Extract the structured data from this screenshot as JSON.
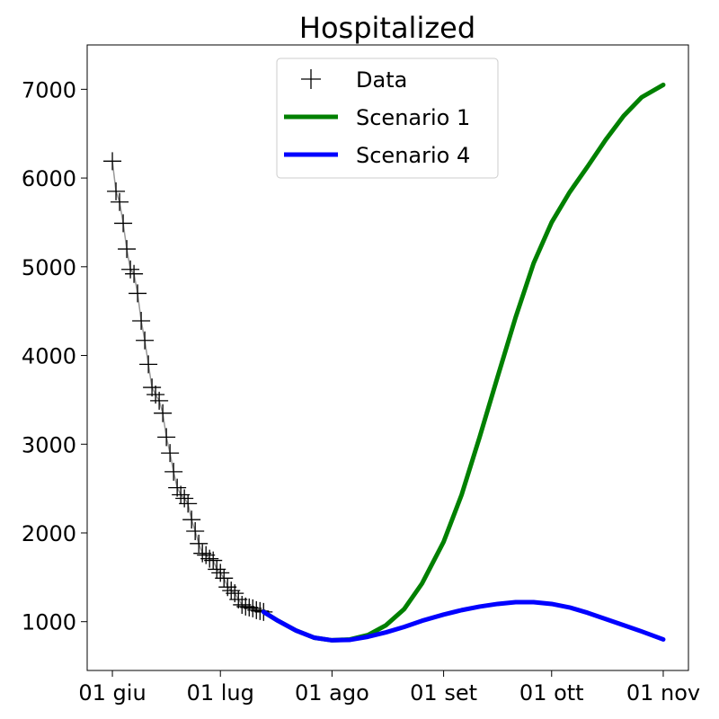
{
  "chart_data": {
    "type": "line",
    "title": "Hospitalized",
    "xlabel": "",
    "ylabel": "",
    "x_axis": {
      "type": "date",
      "range": [
        "2020-05-25",
        "2020-11-08"
      ],
      "ticks": [
        {
          "date": "2020-06-01",
          "label": "01 giu"
        },
        {
          "date": "2020-07-01",
          "label": "01 lug"
        },
        {
          "date": "2020-08-01",
          "label": "01 ago"
        },
        {
          "date": "2020-09-01",
          "label": "01 set"
        },
        {
          "date": "2020-10-01",
          "label": "01 ott"
        },
        {
          "date": "2020-11-01",
          "label": "01 nov"
        }
      ]
    },
    "y_axis": {
      "range": [
        450,
        7500
      ],
      "ticks": [
        1000,
        2000,
        3000,
        4000,
        5000,
        6000,
        7000
      ]
    },
    "grid": false,
    "legend": {
      "position": "top-center",
      "entries": [
        {
          "label": "Data",
          "marker": "+",
          "color": "#000000"
        },
        {
          "label": "Scenario 1",
          "color": "#008000"
        },
        {
          "label": "Scenario 4",
          "color": "#0000ff"
        }
      ]
    },
    "series": [
      {
        "name": "Data",
        "style": "marker",
        "marker": "+",
        "color": "#000000",
        "connector_color": "#999999",
        "points": [
          [
            "2020-06-01",
            6190
          ],
          [
            "2020-06-02",
            5850
          ],
          [
            "2020-06-03",
            5730
          ],
          [
            "2020-06-04",
            5490
          ],
          [
            "2020-06-05",
            5200
          ],
          [
            "2020-06-06",
            4970
          ],
          [
            "2020-06-07",
            4920
          ],
          [
            "2020-06-08",
            4700
          ],
          [
            "2020-06-09",
            4390
          ],
          [
            "2020-06-10",
            4170
          ],
          [
            "2020-06-11",
            3900
          ],
          [
            "2020-06-12",
            3640
          ],
          [
            "2020-06-13",
            3560
          ],
          [
            "2020-06-14",
            3490
          ],
          [
            "2020-06-15",
            3350
          ],
          [
            "2020-06-16",
            3080
          ],
          [
            "2020-06-17",
            2900
          ],
          [
            "2020-06-18",
            2690
          ],
          [
            "2020-06-19",
            2510
          ],
          [
            "2020-06-20",
            2430
          ],
          [
            "2020-06-21",
            2390
          ],
          [
            "2020-06-22",
            2330
          ],
          [
            "2020-06-23",
            2150
          ],
          [
            "2020-06-24",
            2020
          ],
          [
            "2020-06-25",
            1880
          ],
          [
            "2020-06-26",
            1770
          ],
          [
            "2020-06-27",
            1750
          ],
          [
            "2020-06-28",
            1710
          ],
          [
            "2020-06-29",
            1690
          ],
          [
            "2020-06-30",
            1590
          ],
          [
            "2020-07-01",
            1550
          ],
          [
            "2020-07-02",
            1490
          ],
          [
            "2020-07-03",
            1390
          ],
          [
            "2020-07-04",
            1350
          ],
          [
            "2020-07-05",
            1320
          ],
          [
            "2020-07-06",
            1250
          ],
          [
            "2020-07-07",
            1190
          ],
          [
            "2020-07-08",
            1170
          ],
          [
            "2020-07-09",
            1160
          ],
          [
            "2020-07-10",
            1150
          ],
          [
            "2020-07-11",
            1130
          ],
          [
            "2020-07-12",
            1120
          ],
          [
            "2020-07-13",
            1110
          ]
        ]
      },
      {
        "name": "Scenario 1",
        "style": "line",
        "color": "#008000",
        "points": [
          [
            "2020-07-13",
            1110
          ],
          [
            "2020-07-17",
            1010
          ],
          [
            "2020-07-22",
            900
          ],
          [
            "2020-07-27",
            820
          ],
          [
            "2020-08-01",
            790
          ],
          [
            "2020-08-06",
            800
          ],
          [
            "2020-08-11",
            850
          ],
          [
            "2020-08-16",
            960
          ],
          [
            "2020-08-21",
            1140
          ],
          [
            "2020-08-26",
            1430
          ],
          [
            "2020-09-01",
            1900
          ],
          [
            "2020-09-06",
            2430
          ],
          [
            "2020-09-11",
            3080
          ],
          [
            "2020-09-16",
            3760
          ],
          [
            "2020-09-21",
            4430
          ],
          [
            "2020-09-26",
            5040
          ],
          [
            "2020-10-01",
            5500
          ],
          [
            "2020-10-06",
            5840
          ],
          [
            "2020-10-11",
            6130
          ],
          [
            "2020-10-16",
            6430
          ],
          [
            "2020-10-21",
            6700
          ],
          [
            "2020-10-26",
            6910
          ],
          [
            "2020-11-01",
            7050
          ]
        ]
      },
      {
        "name": "Scenario 4",
        "style": "line",
        "color": "#0000ff",
        "points": [
          [
            "2020-07-13",
            1110
          ],
          [
            "2020-07-17",
            1010
          ],
          [
            "2020-07-22",
            900
          ],
          [
            "2020-07-27",
            820
          ],
          [
            "2020-08-01",
            790
          ],
          [
            "2020-08-06",
            795
          ],
          [
            "2020-08-11",
            830
          ],
          [
            "2020-08-16",
            880
          ],
          [
            "2020-08-21",
            940
          ],
          [
            "2020-08-26",
            1010
          ],
          [
            "2020-09-01",
            1080
          ],
          [
            "2020-09-06",
            1130
          ],
          [
            "2020-09-11",
            1170
          ],
          [
            "2020-09-16",
            1200
          ],
          [
            "2020-09-21",
            1220
          ],
          [
            "2020-09-26",
            1220
          ],
          [
            "2020-10-01",
            1200
          ],
          [
            "2020-10-06",
            1160
          ],
          [
            "2020-10-11",
            1100
          ],
          [
            "2020-10-16",
            1030
          ],
          [
            "2020-10-21",
            960
          ],
          [
            "2020-10-26",
            890
          ],
          [
            "2020-11-01",
            800
          ]
        ]
      }
    ]
  }
}
